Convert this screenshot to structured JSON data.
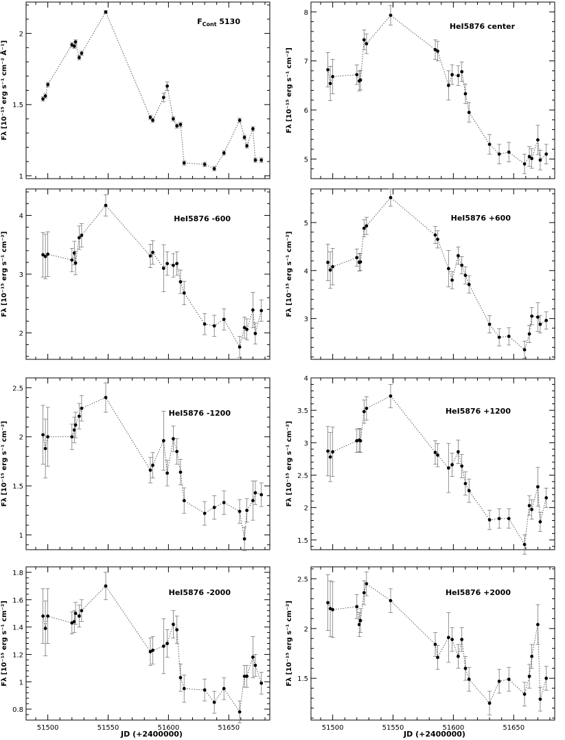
{
  "figure": {
    "xlabel": "JD (+2400000)"
  },
  "chart_data": [
    {
      "type": "scatter",
      "title": "F",
      "title_sub": "Cont",
      "title_rest": " 5130",
      "ylabel": "Fλ [10⁻¹⁵ erg s⁻¹ cm⁻² Å⁻¹]",
      "xlim": [
        51482,
        51684
      ],
      "ylim": [
        0.98,
        2.22
      ],
      "yticks": [
        1,
        1.5,
        2
      ],
      "x": [
        51496,
        51498,
        51500,
        51520,
        51522,
        51523,
        51526,
        51528,
        51548,
        51585,
        51587,
        51596,
        51599,
        51604,
        51607,
        51610,
        51613,
        51630,
        51638,
        51646,
        51659,
        51663,
        51665,
        51670,
        51672,
        51677
      ],
      "y": [
        1.54,
        1.56,
        1.64,
        1.92,
        1.91,
        1.94,
        1.83,
        1.86,
        2.15,
        1.41,
        1.39,
        1.55,
        1.63,
        1.4,
        1.35,
        1.36,
        1.09,
        1.08,
        1.05,
        1.16,
        1.39,
        1.27,
        1.21,
        1.33,
        1.11,
        1.11
      ],
      "err": [
        0.015,
        0.015,
        0.015,
        0.015,
        0.015,
        0.015,
        0.015,
        0.015,
        0.01,
        0.015,
        0.015,
        0.03,
        0.03,
        0.015,
        0.015,
        0.015,
        0.015,
        0.015,
        0.015,
        0.015,
        0.015,
        0.015,
        0.015,
        0.015,
        0.015,
        0.015
      ]
    },
    {
      "type": "scatter",
      "title": "HeI5876 center",
      "ylabel": "Fλ [10⁻¹⁵ erg s⁻¹ cm⁻²]",
      "xlim": [
        51482,
        51684
      ],
      "ylim": [
        4.6,
        8.2
      ],
      "yticks": [
        5,
        6,
        7,
        8
      ],
      "x": [
        51496,
        51498,
        51500,
        51520,
        51522,
        51523,
        51526,
        51528,
        51548,
        51585,
        51587,
        51596,
        51599,
        51604,
        51607,
        51610,
        51613,
        51630,
        51638,
        51646,
        51659,
        51663,
        51665,
        51670,
        51672,
        51677
      ],
      "y": [
        6.82,
        6.54,
        6.68,
        6.72,
        6.59,
        6.61,
        7.43,
        7.35,
        7.93,
        7.23,
        7.2,
        6.5,
        6.72,
        6.7,
        6.78,
        6.33,
        5.95,
        5.3,
        5.1,
        5.14,
        4.9,
        5.05,
        5.01,
        5.39,
        4.98,
        5.1
      ],
      "err": [
        0.35,
        0.35,
        0.35,
        0.2,
        0.2,
        0.2,
        0.2,
        0.2,
        0.2,
        0.2,
        0.2,
        0.3,
        0.2,
        0.2,
        0.2,
        0.2,
        0.2,
        0.2,
        0.2,
        0.2,
        0.2,
        0.2,
        0.2,
        0.3,
        0.2,
        0.2
      ]
    },
    {
      "type": "scatter",
      "title": "HeI5876 -600",
      "ylabel": "Fλ [10⁻¹⁵ erg s⁻¹ cm⁻²]",
      "xlim": [
        51482,
        51684
      ],
      "ylim": [
        1.55,
        4.45
      ],
      "yticks": [
        2,
        3,
        4
      ],
      "x": [
        51496,
        51498,
        51500,
        51520,
        51522,
        51523,
        51526,
        51528,
        51548,
        51585,
        51587,
        51596,
        51599,
        51604,
        51607,
        51610,
        51613,
        51630,
        51638,
        51646,
        51659,
        51663,
        51665,
        51670,
        51672,
        51677
      ],
      "y": [
        3.33,
        3.3,
        3.34,
        3.24,
        3.36,
        3.19,
        3.62,
        3.66,
        4.17,
        3.31,
        3.37,
        3.1,
        3.18,
        3.15,
        3.18,
        2.87,
        2.68,
        2.15,
        2.12,
        2.23,
        1.76,
        2.09,
        2.06,
        2.39,
        1.99,
        2.38
      ],
      "err": [
        0.38,
        0.38,
        0.38,
        0.2,
        0.2,
        0.2,
        0.2,
        0.2,
        0.18,
        0.2,
        0.2,
        0.4,
        0.2,
        0.2,
        0.2,
        0.2,
        0.2,
        0.18,
        0.18,
        0.18,
        0.18,
        0.18,
        0.18,
        0.3,
        0.18,
        0.18
      ]
    },
    {
      "type": "scatter",
      "title": "HeI5876 +600",
      "ylabel": "Fλ [10⁻¹⁵ erg s⁻¹ cm⁻²]",
      "xlim": [
        51482,
        51684
      ],
      "ylim": [
        2.15,
        5.7
      ],
      "yticks": [
        3,
        4,
        5
      ],
      "x": [
        51496,
        51498,
        51500,
        51520,
        51522,
        51523,
        51526,
        51528,
        51548,
        51585,
        51587,
        51596,
        51599,
        51604,
        51607,
        51610,
        51613,
        51630,
        51638,
        51646,
        51659,
        51663,
        51665,
        51670,
        51672,
        51677
      ],
      "y": [
        4.17,
        4.01,
        4.08,
        4.27,
        4.17,
        4.18,
        4.88,
        4.93,
        5.52,
        4.74,
        4.65,
        4.04,
        3.8,
        4.31,
        4.11,
        3.9,
        3.71,
        2.88,
        2.61,
        2.63,
        2.35,
        2.68,
        3.05,
        3.03,
        2.88,
        2.96
      ],
      "err": [
        0.38,
        0.38,
        0.38,
        0.18,
        0.18,
        0.18,
        0.18,
        0.18,
        0.18,
        0.18,
        0.18,
        0.38,
        0.18,
        0.18,
        0.18,
        0.18,
        0.18,
        0.18,
        0.18,
        0.18,
        0.18,
        0.18,
        0.18,
        0.3,
        0.18,
        0.18
      ]
    },
    {
      "type": "scatter",
      "title": "HeI5876 -1200",
      "ylabel": "Fλ [10⁻¹⁵ erg s⁻¹ cm⁻²]",
      "xlim": [
        51482,
        51684
      ],
      "ylim": [
        0.85,
        2.6
      ],
      "yticks": [
        1,
        1.5,
        2,
        2.5
      ],
      "x": [
        51496,
        51498,
        51500,
        51520,
        51522,
        51523,
        51526,
        51528,
        51548,
        51585,
        51587,
        51596,
        51599,
        51604,
        51607,
        51610,
        51613,
        51630,
        51638,
        51646,
        51659,
        51663,
        51665,
        51670,
        51672,
        51677
      ],
      "y": [
        2.02,
        1.88,
        2.0,
        2.0,
        2.07,
        2.12,
        2.21,
        2.29,
        2.4,
        1.66,
        1.71,
        1.96,
        1.63,
        1.98,
        1.85,
        1.64,
        1.35,
        1.22,
        1.28,
        1.33,
        1.24,
        0.96,
        1.25,
        1.35,
        1.43,
        1.41
      ],
      "err": [
        0.3,
        0.3,
        0.3,
        0.13,
        0.13,
        0.13,
        0.13,
        0.13,
        0.15,
        0.13,
        0.13,
        0.3,
        0.13,
        0.13,
        0.13,
        0.13,
        0.13,
        0.12,
        0.12,
        0.12,
        0.12,
        0.12,
        0.12,
        0.2,
        0.12,
        0.12
      ]
    },
    {
      "type": "scatter",
      "title": "HeI5876 +1200",
      "ylabel": "Fλ [10⁻¹⁵ erg s⁻¹ cm⁻²]",
      "xlim": [
        51482,
        51684
      ],
      "ylim": [
        1.35,
        4.0
      ],
      "yticks": [
        1.5,
        2,
        2.5,
        3,
        3.5,
        4
      ],
      "x": [
        51496,
        51498,
        51500,
        51520,
        51522,
        51523,
        51526,
        51528,
        51548,
        51585,
        51587,
        51596,
        51599,
        51604,
        51607,
        51610,
        51613,
        51630,
        51638,
        51646,
        51659,
        51663,
        51665,
        51670,
        51672,
        51677
      ],
      "y": [
        2.87,
        2.78,
        2.86,
        3.03,
        3.04,
        3.03,
        3.48,
        3.53,
        3.72,
        2.85,
        2.81,
        2.61,
        2.66,
        2.86,
        2.64,
        2.37,
        2.26,
        1.81,
        1.83,
        1.83,
        1.43,
        2.03,
        1.97,
        2.32,
        1.78,
        2.15
      ],
      "err": [
        0.38,
        0.38,
        0.38,
        0.18,
        0.18,
        0.18,
        0.18,
        0.18,
        0.18,
        0.18,
        0.18,
        0.38,
        0.18,
        0.18,
        0.18,
        0.18,
        0.18,
        0.15,
        0.15,
        0.15,
        0.15,
        0.15,
        0.15,
        0.3,
        0.15,
        0.15
      ]
    },
    {
      "type": "scatter",
      "title": "HeI5876 -2000",
      "ylabel": "Fλ [10⁻¹⁵ erg s⁻¹ cm⁻²]",
      "xlim": [
        51482,
        51684
      ],
      "ylim": [
        0.72,
        1.84
      ],
      "yticks": [
        0.8,
        1,
        1.2,
        1.4,
        1.6,
        1.8
      ],
      "x": [
        51496,
        51498,
        51500,
        51520,
        51522,
        51523,
        51526,
        51528,
        51548,
        51585,
        51587,
        51596,
        51599,
        51604,
        51607,
        51610,
        51613,
        51630,
        51638,
        51646,
        51659,
        51663,
        51665,
        51670,
        51672,
        51677
      ],
      "y": [
        1.48,
        1.39,
        1.48,
        1.43,
        1.44,
        1.5,
        1.48,
        1.52,
        1.7,
        1.22,
        1.23,
        1.26,
        1.28,
        1.42,
        1.38,
        1.03,
        0.95,
        0.94,
        0.85,
        0.95,
        0.78,
        1.04,
        1.04,
        1.18,
        1.12,
        0.99
      ],
      "err": [
        0.2,
        0.2,
        0.2,
        0.08,
        0.08,
        0.08,
        0.08,
        0.08,
        0.1,
        0.1,
        0.1,
        0.2,
        0.1,
        0.1,
        0.1,
        0.1,
        0.1,
        0.08,
        0.08,
        0.08,
        0.08,
        0.08,
        0.08,
        0.15,
        0.08,
        0.08
      ]
    },
    {
      "type": "scatter",
      "title": "HeI5876 +2000",
      "ylabel": "Fλ [10⁻¹⁵ erg s⁻¹ cm⁻²]",
      "xlim": [
        51482,
        51684
      ],
      "ylim": [
        1.08,
        2.62
      ],
      "yticks": [
        1.5,
        2,
        2.5
      ],
      "x": [
        51496,
        51498,
        51500,
        51520,
        51522,
        51523,
        51526,
        51528,
        51548,
        51585,
        51587,
        51596,
        51599,
        51604,
        51607,
        51610,
        51613,
        51630,
        51638,
        51646,
        51659,
        51663,
        51665,
        51670,
        51672,
        51677
      ],
      "y": [
        2.26,
        2.2,
        2.19,
        2.22,
        2.04,
        2.08,
        2.36,
        2.45,
        2.28,
        1.84,
        1.71,
        1.91,
        1.89,
        1.72,
        1.89,
        1.6,
        1.49,
        1.25,
        1.47,
        1.49,
        1.34,
        1.52,
        1.72,
        2.04,
        1.29,
        1.5
      ],
      "err": [
        0.28,
        0.28,
        0.28,
        0.12,
        0.12,
        0.12,
        0.12,
        0.12,
        0.12,
        0.12,
        0.12,
        0.25,
        0.12,
        0.12,
        0.12,
        0.12,
        0.12,
        0.12,
        0.12,
        0.12,
        0.12,
        0.12,
        0.12,
        0.2,
        0.12,
        0.12
      ]
    }
  ]
}
